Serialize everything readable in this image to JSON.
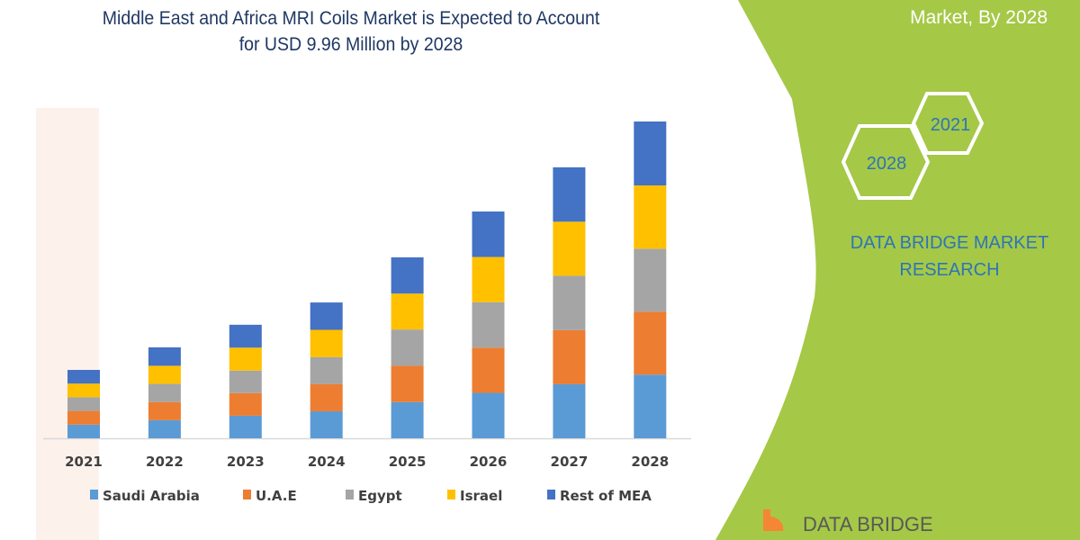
{
  "title": {
    "line1": "Middle East and Africa MRI Coils Market is Expected to Account",
    "line2": "for USD 9.96 Million by 2028"
  },
  "corner_label": "Market, By 2028",
  "hexagons": [
    "2021",
    "2028"
  ],
  "brand": {
    "line1": "DATA BRIDGE MARKET",
    "line2": "RESEARCH"
  },
  "logo": {
    "text": "DATA BRIDGE"
  },
  "colors": {
    "panel": "#a5c847",
    "title": "#1f3864",
    "brand_text": "#2e75b6",
    "logo_orange": "#f58634"
  },
  "chart_data": {
    "type": "bar",
    "stacked": true,
    "categories": [
      "2021",
      "2022",
      "2023",
      "2024",
      "2025",
      "2026",
      "2027",
      "2028"
    ],
    "series": [
      {
        "name": "Saudi Arabia",
        "color": "#5b9bd5",
        "values": [
          0.43,
          0.57,
          0.71,
          0.85,
          1.14,
          1.43,
          1.7,
          2.0
        ]
      },
      {
        "name": "U.A.E",
        "color": "#ed7d31",
        "values": [
          0.43,
          0.57,
          0.71,
          0.85,
          1.14,
          1.42,
          1.7,
          1.98
        ]
      },
      {
        "name": "Egypt",
        "color": "#a5a5a5",
        "values": [
          0.43,
          0.57,
          0.71,
          0.85,
          1.14,
          1.43,
          1.71,
          1.98
        ]
      },
      {
        "name": "Israel",
        "color": "#ffc000",
        "values": [
          0.43,
          0.57,
          0.72,
          0.86,
          1.13,
          1.42,
          1.7,
          1.99
        ]
      },
      {
        "name": "Rest of MEA",
        "color": "#4472c4",
        "values": [
          0.43,
          0.58,
          0.72,
          0.86,
          1.14,
          1.43,
          1.71,
          2.01
        ]
      }
    ],
    "unit": "USD Million",
    "ylim": [
      0,
      9.96
    ],
    "grid": false,
    "legend": "bottom"
  }
}
